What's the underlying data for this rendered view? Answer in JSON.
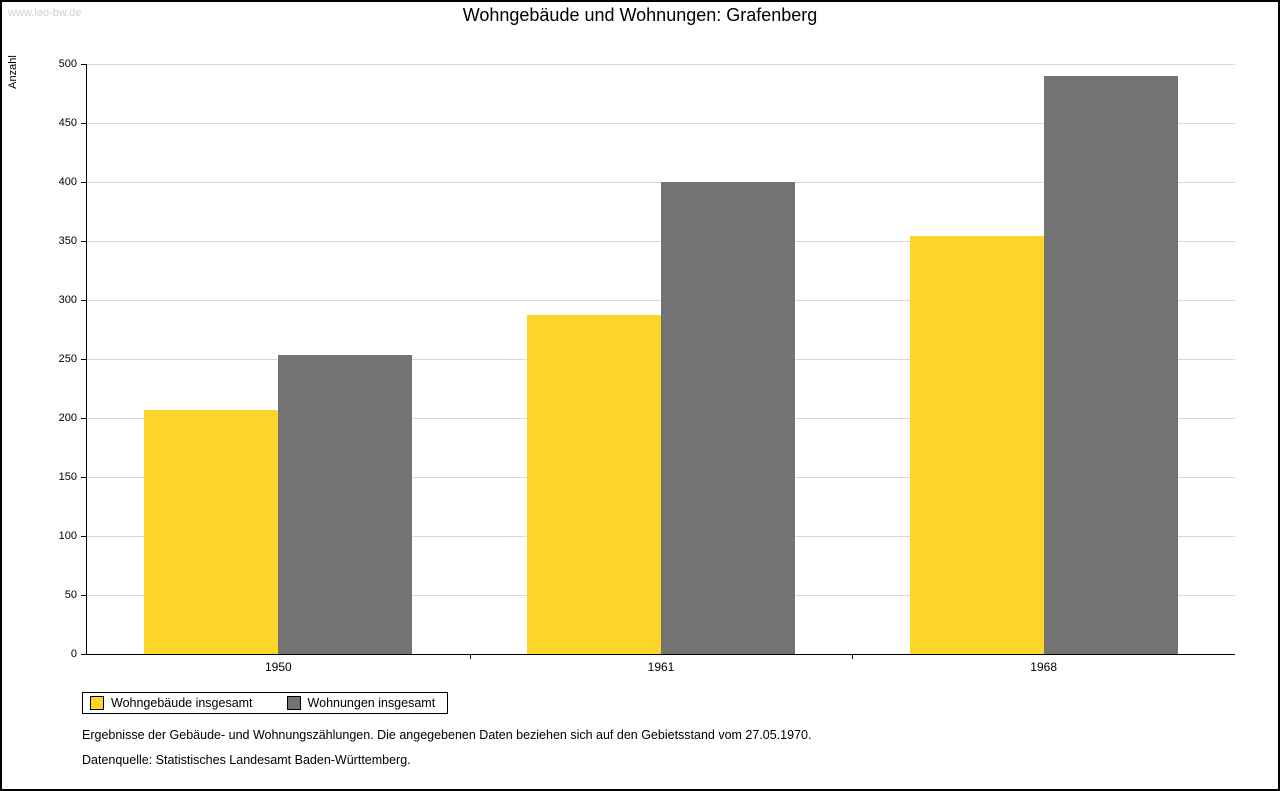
{
  "watermark": "www.leo-bw.de",
  "chart_data": {
    "type": "bar",
    "title": "Wohngebäude und Wohnungen: Grafenberg",
    "ylabel": "Anzahl",
    "xlabel": "",
    "categories": [
      "1950",
      "1961",
      "1968"
    ],
    "series": [
      {
        "name": "Wohngebäude insgesamt",
        "color": "#FCD42A",
        "values": [
          207,
          287,
          354
        ]
      },
      {
        "name": "Wohnungen insgesamt",
        "color": "#737373",
        "values": [
          253,
          400,
          490
        ]
      }
    ],
    "ylim": [
      0,
      500
    ],
    "ytick_step": 50,
    "grid": true,
    "gridline_color": "#d9d9d9",
    "legend_position": "bottom-left"
  },
  "notes": [
    "Ergebnisse der Gebäude- und Wohnungszählungen. Die angegebenen Daten beziehen sich auf den Gebietsstand vom 27.05.1970.",
    "Datenquelle: Statistisches Landesamt Baden-Württemberg."
  ]
}
